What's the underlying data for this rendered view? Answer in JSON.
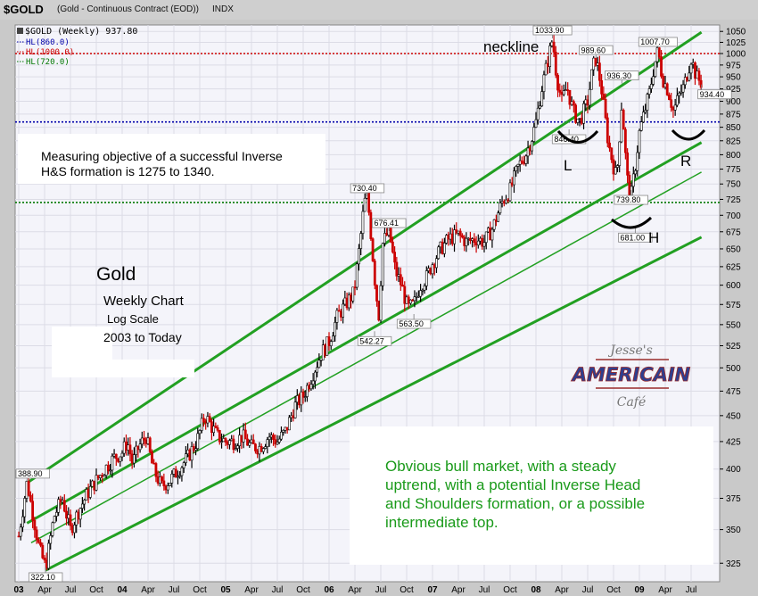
{
  "header": {
    "symbol": "$GOLD",
    "description": "(Gold - Continuous Contract (EOD))",
    "exchange": "INDX"
  },
  "chart_data": {
    "type": "candlestick",
    "scale": "log",
    "title": "$GOLD (Weekly) 937.80",
    "ylim": [
      312,
      1065
    ],
    "grid": true,
    "yticks": [
      325,
      350,
      375,
      400,
      425,
      450,
      475,
      500,
      525,
      550,
      575,
      600,
      625,
      650,
      675,
      700,
      725,
      750,
      775,
      800,
      825,
      850,
      875,
      900,
      925,
      950,
      975,
      1000,
      1025,
      1050
    ],
    "xticks": [
      {
        "label": "03",
        "t": 0
      },
      {
        "label": "Apr",
        "t": 0.25
      },
      {
        "label": "Jul",
        "t": 0.5
      },
      {
        "label": "Oct",
        "t": 0.75
      },
      {
        "label": "04",
        "t": 1
      },
      {
        "label": "Apr",
        "t": 1.25
      },
      {
        "label": "Jul",
        "t": 1.5
      },
      {
        "label": "Oct",
        "t": 1.75
      },
      {
        "label": "05",
        "t": 2
      },
      {
        "label": "Apr",
        "t": 2.25
      },
      {
        "label": "Jul",
        "t": 2.5
      },
      {
        "label": "Oct",
        "t": 2.75
      },
      {
        "label": "06",
        "t": 3
      },
      {
        "label": "Apr",
        "t": 3.25
      },
      {
        "label": "Jul",
        "t": 3.5
      },
      {
        "label": "Oct",
        "t": 3.75
      },
      {
        "label": "07",
        "t": 4
      },
      {
        "label": "Apr",
        "t": 4.25
      },
      {
        "label": "Jul",
        "t": 4.5
      },
      {
        "label": "Oct",
        "t": 4.75
      },
      {
        "label": "08",
        "t": 5
      },
      {
        "label": "Apr",
        "t": 5.25
      },
      {
        "label": "Jul",
        "t": 5.5
      },
      {
        "label": "Oct",
        "t": 5.75
      },
      {
        "label": "09",
        "t": 6
      },
      {
        "label": "Apr",
        "t": 6.25
      },
      {
        "label": "Jul",
        "t": 6.5
      }
    ],
    "legend": [
      {
        "text": "HL(860.0)",
        "color": "#0000aa",
        "value": 860
      },
      {
        "text": "HL(1000.0)",
        "color": "#cc0000",
        "value": 1000
      },
      {
        "text": "HL(720.0)",
        "color": "#007700",
        "value": 720
      }
    ],
    "price_path": [
      [
        0,
        345
      ],
      [
        0.08,
        389
      ],
      [
        0.13,
        365
      ],
      [
        0.2,
        335
      ],
      [
        0.26,
        322
      ],
      [
        0.34,
        360
      ],
      [
        0.42,
        375
      ],
      [
        0.5,
        350
      ],
      [
        0.58,
        365
      ],
      [
        0.67,
        380
      ],
      [
        0.75,
        390
      ],
      [
        0.83,
        400
      ],
      [
        0.92,
        410
      ],
      [
        1.0,
        415
      ],
      [
        1.05,
        425
      ],
      [
        1.1,
        405
      ],
      [
        1.16,
        420
      ],
      [
        1.23,
        430
      ],
      [
        1.3,
        400
      ],
      [
        1.38,
        385
      ],
      [
        1.46,
        390
      ],
      [
        1.55,
        400
      ],
      [
        1.63,
        410
      ],
      [
        1.72,
        425
      ],
      [
        1.8,
        450
      ],
      [
        1.86,
        440
      ],
      [
        1.92,
        430
      ],
      [
        2.0,
        425
      ],
      [
        2.08,
        425
      ],
      [
        2.16,
        430
      ],
      [
        2.25,
        420
      ],
      [
        2.33,
        420
      ],
      [
        2.42,
        430
      ],
      [
        2.5,
        425
      ],
      [
        2.58,
        435
      ],
      [
        2.67,
        460
      ],
      [
        2.75,
        470
      ],
      [
        2.83,
        490
      ],
      [
        2.92,
        515
      ],
      [
        3.0,
        530
      ],
      [
        3.08,
        560
      ],
      [
        3.16,
        575
      ],
      [
        3.24,
        590
      ],
      [
        3.3,
        660
      ],
      [
        3.34,
        720
      ],
      [
        3.37,
        730
      ],
      [
        3.4,
        680
      ],
      [
        3.44,
        610
      ],
      [
        3.48,
        560
      ],
      [
        3.52,
        660
      ],
      [
        3.58,
        676
      ],
      [
        3.64,
        620
      ],
      [
        3.7,
        600
      ],
      [
        3.76,
        570
      ],
      [
        3.82,
        575
      ],
      [
        3.88,
        600
      ],
      [
        3.94,
        610
      ],
      [
        4.0,
        630
      ],
      [
        4.08,
        650
      ],
      [
        4.16,
        665
      ],
      [
        4.25,
        670
      ],
      [
        4.33,
        660
      ],
      [
        4.42,
        665
      ],
      [
        4.5,
        660
      ],
      [
        4.58,
        680
      ],
      [
        4.67,
        720
      ],
      [
        4.75,
        740
      ],
      [
        4.83,
        780
      ],
      [
        4.9,
        800
      ],
      [
        4.96,
        830
      ],
      [
        5.0,
        860
      ],
      [
        5.05,
        920
      ],
      [
        5.12,
        990
      ],
      [
        5.16,
        1034
      ],
      [
        5.2,
        950
      ],
      [
        5.25,
        900
      ],
      [
        5.3,
        930
      ],
      [
        5.36,
        880
      ],
      [
        5.42,
        860
      ],
      [
        5.5,
        900
      ],
      [
        5.55,
        970
      ],
      [
        5.58,
        990
      ],
      [
        5.63,
        930
      ],
      [
        5.7,
        820
      ],
      [
        5.75,
        780
      ],
      [
        5.78,
        760
      ],
      [
        5.83,
        900
      ],
      [
        5.88,
        760
      ],
      [
        5.92,
        730
      ],
      [
        5.96,
        780
      ],
      [
        6.0,
        840
      ],
      [
        6.05,
        880
      ],
      [
        6.1,
        920
      ],
      [
        6.14,
        970
      ],
      [
        6.18,
        1008
      ],
      [
        6.22,
        950
      ],
      [
        6.28,
        920
      ],
      [
        6.33,
        880
      ],
      [
        6.38,
        910
      ],
      [
        6.43,
        930
      ],
      [
        6.5,
        990
      ],
      [
        6.55,
        950
      ],
      [
        6.6,
        937
      ]
    ],
    "value_labels": [
      {
        "text": "388.90",
        "t": 0.08,
        "v": 389
      },
      {
        "text": "322.10",
        "t": 0.26,
        "v": 322
      },
      {
        "text": "730.40",
        "t": 3.37,
        "v": 730
      },
      {
        "text": "676.41",
        "t": 3.58,
        "v": 676
      },
      {
        "text": "542.27",
        "t": 3.44,
        "v": 542
      },
      {
        "text": "563.50",
        "t": 3.82,
        "v": 563
      },
      {
        "text": "1033.90",
        "t": 5.16,
        "v": 1034
      },
      {
        "text": "989.60",
        "t": 5.58,
        "v": 990
      },
      {
        "text": "936.30",
        "t": 5.83,
        "v": 936
      },
      {
        "text": "846.40",
        "t": 5.32,
        "v": 846
      },
      {
        "text": "739.80",
        "t": 5.92,
        "v": 740
      },
      {
        "text": "681.00",
        "t": 5.96,
        "v": 681
      },
      {
        "text": "1007.70",
        "t": 6.18,
        "v": 1008
      },
      {
        "text": "934.40",
        "t": 6.6,
        "v": 934
      }
    ],
    "channels": [
      {
        "t0": 0.08,
        "v0": 388,
        "t1": 6.6,
        "v1": 1048,
        "width": 3
      },
      {
        "t0": 0.08,
        "v0": 355,
        "t1": 6.6,
        "v1": 822,
        "width": 3
      },
      {
        "t0": 0.12,
        "v0": 340,
        "t1": 6.6,
        "v1": 770,
        "width": 1.5
      },
      {
        "t0": 0.26,
        "v0": 320,
        "t1": 6.6,
        "v1": 667,
        "width": 3
      }
    ],
    "annotations": {
      "neckline": "neckline",
      "objective_line1": "Measuring objective of a successful Inverse",
      "objective_line2": "H&S formation is 1275 to 1340.",
      "gold_title": "Gold",
      "gold_sub1": "Weekly Chart",
      "gold_sub2": "Log Scale",
      "gold_sub3": "2003 to Today",
      "label_L": "L",
      "label_H": "H",
      "label_R": "R",
      "bull_line1": "Obvious bull market, with a steady",
      "bull_line2": "uptrend, with a potential Inverse Head",
      "bull_line3": "and Shoulders formation, or a possible",
      "bull_line4": "intermediate top."
    },
    "logo": {
      "line1": "Jesse's",
      "line2": "AMERICAIN",
      "line3": "Café"
    }
  }
}
